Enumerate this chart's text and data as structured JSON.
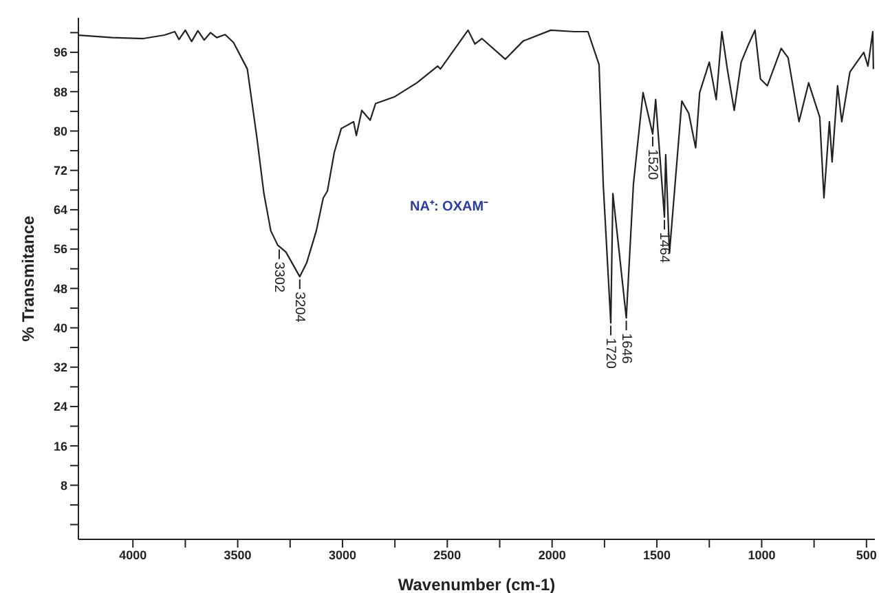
{
  "chart_data": {
    "type": "line",
    "xlabel": "Wavenumber (cm-1)",
    "ylabel": "% Transmitance",
    "xlim": [
      4260,
      460
    ],
    "xticks": [
      4000,
      {
        "value": 3750,
        "label": null
      },
      3500,
      {
        "value": 3250,
        "label": null
      },
      3000,
      {
        "value": 2750,
        "label": null
      },
      2500,
      {
        "value": 2250,
        "label": null
      },
      2000,
      {
        "value": 1750,
        "label": null
      },
      1500,
      {
        "value": 1250,
        "label": null
      },
      1000,
      {
        "value": 750,
        "label": null
      },
      500
    ],
    "ylim": [
      -3,
      103
    ],
    "yticks": [
      {
        "value": 0,
        "label": null
      },
      {
        "value": 4,
        "label": null
      },
      8,
      {
        "value": 12,
        "label": null
      },
      16,
      {
        "value": 20,
        "label": null
      },
      24,
      {
        "value": 28,
        "label": null
      },
      32,
      {
        "value": 36,
        "label": null
      },
      40,
      {
        "value": 44,
        "label": null
      },
      48,
      {
        "value": 52,
        "label": null
      },
      56,
      {
        "value": 60,
        "label": null
      },
      64,
      {
        "value": 68,
        "label": null
      },
      72,
      {
        "value": 76,
        "label": null
      },
      80,
      {
        "value": 84,
        "label": null
      },
      88,
      {
        "value": 92,
        "label": null
      },
      96,
      {
        "value": 100,
        "label": null
      }
    ],
    "grid": false,
    "legend": false,
    "marker": "none",
    "line_style": "solid",
    "series": [
      {
        "color": "#222222",
        "x": [
          4260,
          4100,
          3950,
          3850,
          3800,
          3780,
          3750,
          3720,
          3690,
          3660,
          3630,
          3600,
          3560,
          3520,
          3454,
          3408,
          3375,
          3342,
          3309,
          3270,
          3204,
          3171,
          3125,
          3092,
          3072,
          3039,
          3006,
          2947,
          2934,
          2908,
          2868,
          2842,
          2750,
          2645,
          2546,
          2533,
          2401,
          2368,
          2335,
          2223,
          2138,
          2006,
          1894,
          1829,
          1776,
          1756,
          1720,
          1710,
          1646,
          1612,
          1566,
          1520,
          1506,
          1464,
          1458,
          1440,
          1381,
          1348,
          1315,
          1296,
          1250,
          1217,
          1190,
          1164,
          1131,
          1098,
          1065,
          1032,
          1006,
          973,
          907,
          874,
          822,
          776,
          723,
          703,
          677,
          664,
          638,
          618,
          579,
          513,
          493,
          470,
          467
        ],
        "values": [
          99.5,
          99,
          98.8,
          99.5,
          100.2,
          98.6,
          100.5,
          98.2,
          100.4,
          98.5,
          100,
          99,
          99.6,
          98,
          92.6,
          78.5,
          67.3,
          59.7,
          56.8,
          55.4,
          50.4,
          53.2,
          59.7,
          66.4,
          67.8,
          75.7,
          80.5,
          81.9,
          79.1,
          84.2,
          82.2,
          85.6,
          87,
          89.8,
          93.2,
          92.6,
          100.5,
          97.7,
          98.8,
          94.6,
          98.3,
          100.5,
          100.2,
          100.2,
          93.5,
          69.2,
          41,
          67.3,
          42,
          69.2,
          87.8,
          79.4,
          86.4,
          62.5,
          75.2,
          55.2,
          86.1,
          83.6,
          76.6,
          87.8,
          94,
          86.4,
          100.2,
          92.6,
          84.2,
          94,
          97.4,
          100.5,
          90.6,
          89.2,
          96.8,
          94.9,
          81.9,
          89.8,
          82.8,
          66.4,
          81.9,
          73.7,
          89.2,
          81.9,
          92,
          96,
          93.2,
          100.2,
          92.6
        ]
      }
    ],
    "annotations": [
      {
        "text": "3302",
        "x": 3302,
        "y": 56.5
      },
      {
        "text": "3204",
        "x": 3204,
        "y": 50.4
      },
      {
        "text": "1720",
        "x": 1720,
        "y": 41
      },
      {
        "text": "1646",
        "x": 1646,
        "y": 42
      },
      {
        "text": "1520",
        "x": 1520,
        "y": 79.4
      },
      {
        "text": "1464",
        "x": 1464,
        "y": 62.5
      },
      "NA⁺: OXAM⁻"
    ]
  }
}
